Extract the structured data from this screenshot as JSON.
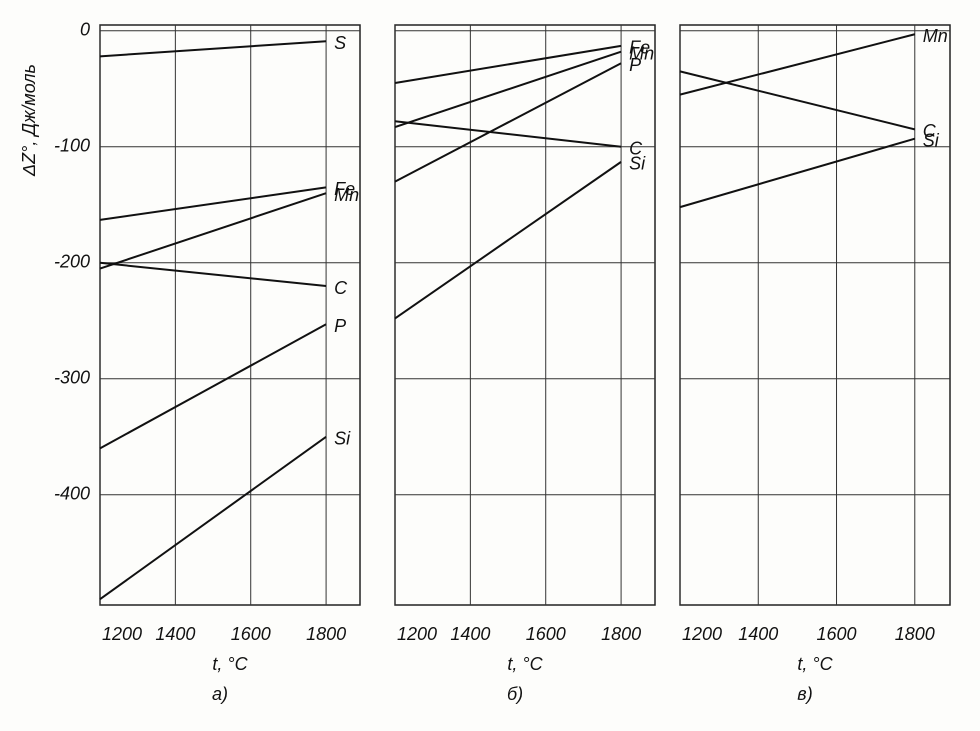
{
  "chart_data": [
    {
      "type": "line",
      "caption": "а)",
      "ylabel": "ΔZ°, Дж/моль",
      "xlabel": "t, °C",
      "x": [
        1200,
        1800
      ],
      "xlim": [
        1200,
        1890
      ],
      "xticks": [
        1200,
        1400,
        1600,
        1800
      ],
      "ylim": [
        -495,
        5
      ],
      "yticks": [
        0,
        -100,
        -200,
        -300,
        -400
      ],
      "grid": true,
      "series": [
        {
          "name": "S",
          "color": "#111",
          "values": [
            -22,
            -9
          ]
        },
        {
          "name": "Fe",
          "color": "#111",
          "values": [
            -163,
            -135
          ]
        },
        {
          "name": "Mn",
          "color": "#111",
          "values": [
            -205,
            -140
          ]
        },
        {
          "name": "C",
          "color": "#111",
          "values": [
            -200,
            -220
          ]
        },
        {
          "name": "P",
          "color": "#111",
          "values": [
            -360,
            -253
          ]
        },
        {
          "name": "Si",
          "color": "#111",
          "values": [
            -490,
            -350
          ]
        }
      ]
    },
    {
      "type": "line",
      "caption": "б)",
      "xlabel": "t, °C",
      "x": [
        1200,
        1800
      ],
      "xlim": [
        1200,
        1890
      ],
      "xticks": [
        1200,
        1400,
        1600,
        1800
      ],
      "ylim": [
        -495,
        5
      ],
      "yticks": [
        0,
        -100,
        -200,
        -300,
        -400
      ],
      "grid": true,
      "series": [
        {
          "name": "Fe",
          "color": "#111",
          "values": [
            -45,
            -13
          ]
        },
        {
          "name": "Mn",
          "color": "#111",
          "values": [
            -83,
            -18
          ]
        },
        {
          "name": "P",
          "color": "#111",
          "values": [
            -130,
            -28
          ]
        },
        {
          "name": "C",
          "color": "#111",
          "values": [
            -78,
            -100
          ]
        },
        {
          "name": "Si",
          "color": "#111",
          "values": [
            -248,
            -113
          ]
        }
      ]
    },
    {
      "type": "line",
      "caption": "в)",
      "xlabel": "t, °C",
      "x": [
        1200,
        1800
      ],
      "xlim": [
        1200,
        1890
      ],
      "xticks": [
        1200,
        1400,
        1600,
        1800
      ],
      "ylim": [
        -495,
        5
      ],
      "yticks": [
        0,
        -100,
        -200,
        -300,
        -400
      ],
      "grid": true,
      "series": [
        {
          "name": "Mn",
          "color": "#111",
          "values": [
            -55,
            -3
          ]
        },
        {
          "name": "C",
          "color": "#111",
          "values": [
            -35,
            -85
          ]
        },
        {
          "name": "Si",
          "color": "#111",
          "values": [
            -152,
            -93
          ]
        }
      ]
    }
  ]
}
